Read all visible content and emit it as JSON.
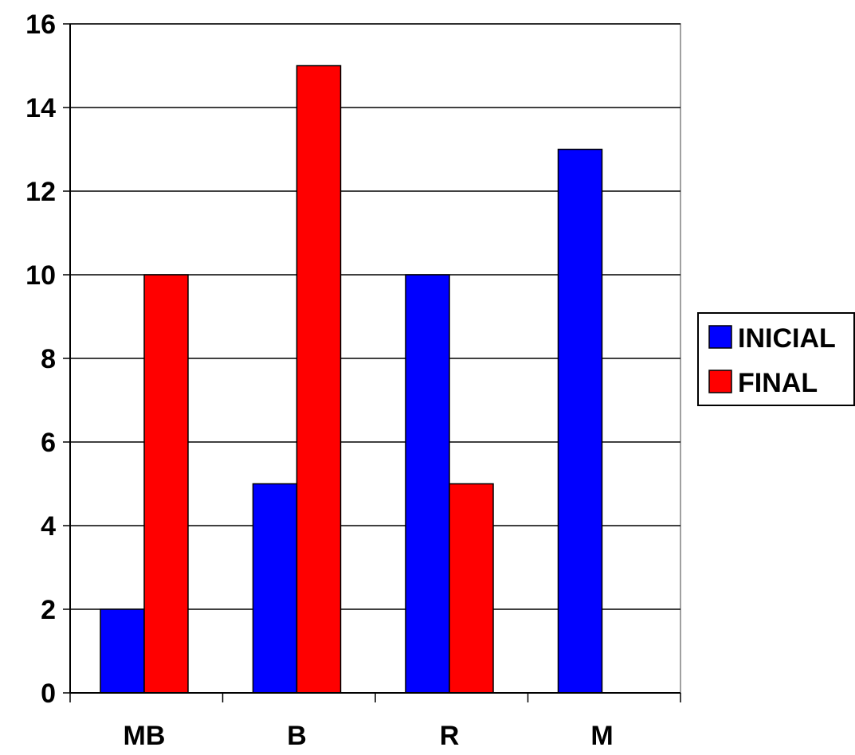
{
  "chart_data": {
    "type": "bar",
    "categories": [
      "MB",
      "B",
      "R",
      "M"
    ],
    "series": [
      {
        "name": "INICIAL",
        "values": [
          2,
          5,
          10,
          13
        ],
        "color": "#0000ff"
      },
      {
        "name": "FINAL",
        "values": [
          10,
          15,
          5,
          0
        ],
        "color": "#ff0000"
      }
    ],
    "y_ticks": [
      "0",
      "2",
      "4",
      "6",
      "8",
      "10",
      "12",
      "14",
      "16"
    ],
    "ylim": [
      0,
      16
    ],
    "grid": true,
    "legend_position": "right"
  }
}
